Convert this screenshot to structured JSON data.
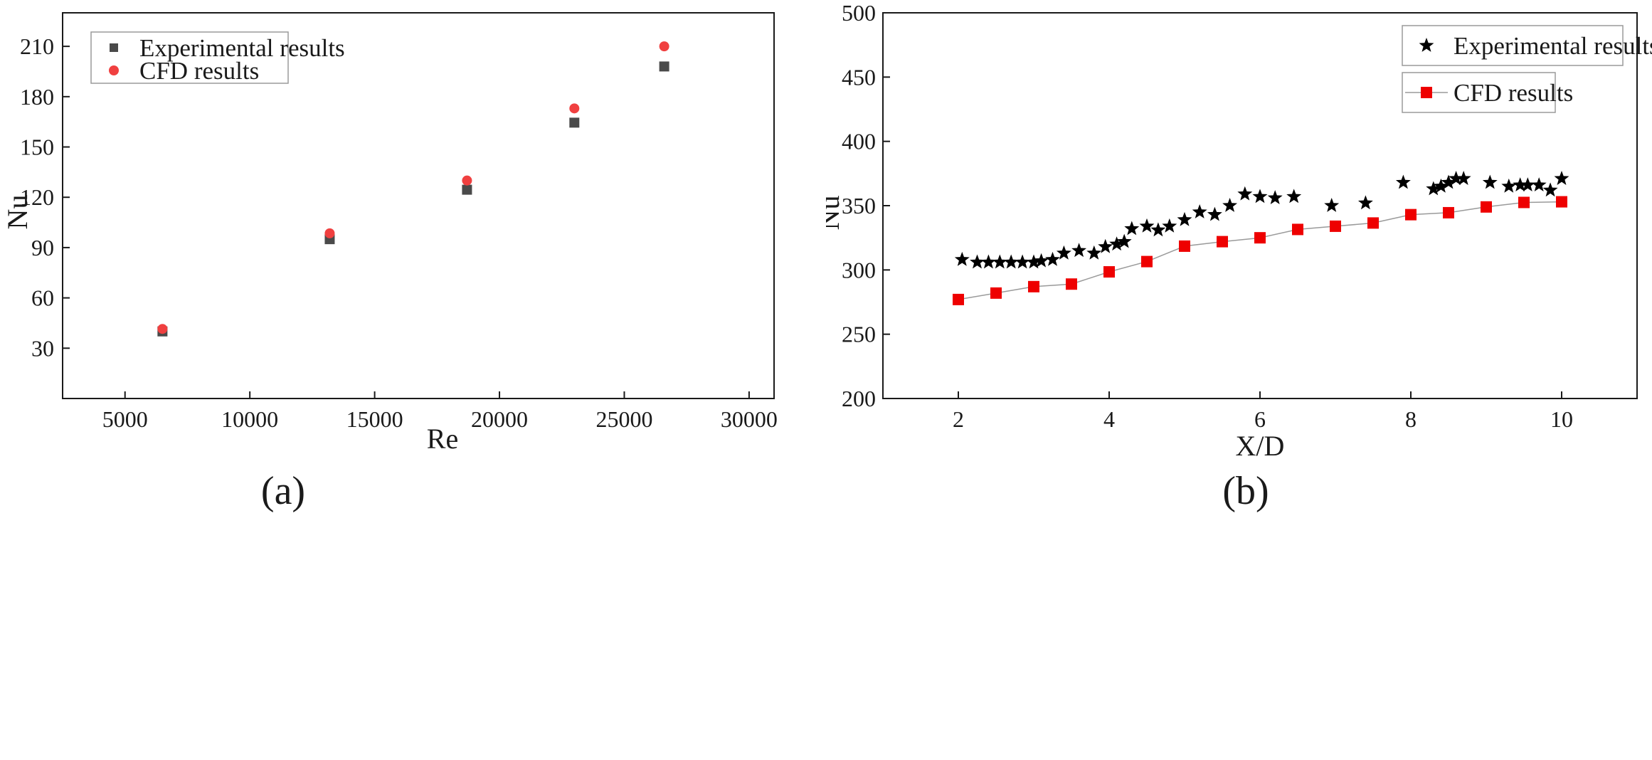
{
  "chart_data": [
    {
      "type": "scatter",
      "panel_label": "(a)",
      "xlabel": "Re",
      "ylabel": "Nu",
      "xlim": [
        2500,
        31000
      ],
      "ylim": [
        0,
        230
      ],
      "xticks": [
        5000,
        10000,
        15000,
        20000,
        25000,
        30000
      ],
      "yticks": [
        30,
        60,
        90,
        120,
        150,
        180,
        210
      ],
      "grid": false,
      "legend_position": "top-left",
      "series": [
        {
          "name": "Experimental results",
          "marker": "square",
          "color": "#4a4a4a",
          "x": [
            6500,
            13200,
            18700,
            23000,
            26600
          ],
          "y": [
            40,
            95,
            124.5,
            164.5,
            198
          ]
        },
        {
          "name": "CFD results",
          "marker": "circle",
          "color": "#f04040",
          "x": [
            6500,
            13200,
            18700,
            23000,
            26600
          ],
          "y": [
            41.5,
            98.5,
            130,
            173,
            210
          ]
        }
      ]
    },
    {
      "type": "line",
      "panel_label": "(b)",
      "xlabel": "X/D",
      "ylabel": "Nu",
      "xlim": [
        1,
        11
      ],
      "ylim": [
        200,
        500
      ],
      "xticks": [
        2,
        4,
        6,
        8,
        10
      ],
      "yticks": [
        200,
        250,
        300,
        350,
        400,
        450,
        500
      ],
      "grid": false,
      "legend_position": "top-right",
      "series": [
        {
          "name": "Experimental results",
          "marker": "star",
          "color": "#000000",
          "line": false,
          "x": [
            2.05,
            2.25,
            2.4,
            2.55,
            2.7,
            2.85,
            3.0,
            3.1,
            3.25,
            3.4,
            3.6,
            3.8,
            3.95,
            4.1,
            4.2,
            4.3,
            4.5,
            4.65,
            4.8,
            5.0,
            5.2,
            5.4,
            5.6,
            5.8,
            6.0,
            6.2,
            6.45,
            6.95,
            7.4,
            7.9,
            8.3,
            8.4,
            8.5,
            8.6,
            8.7,
            9.05,
            9.3,
            9.45,
            9.55,
            9.7,
            9.85,
            10.0
          ],
          "y": [
            308,
            306,
            306,
            306,
            306,
            306,
            306,
            307,
            308,
            313,
            315,
            313,
            318,
            320,
            322,
            332,
            334,
            331,
            334,
            339,
            345,
            343,
            350,
            359,
            357,
            356,
            357,
            350,
            352,
            368,
            363,
            365,
            368,
            371,
            371,
            368,
            365,
            366,
            366,
            366,
            362,
            371
          ]
        },
        {
          "name": "CFD results",
          "marker": "square",
          "color": "#ee0000",
          "line": true,
          "line_color": "#9a9a9a",
          "x": [
            2.0,
            2.5,
            3.0,
            3.5,
            4.0,
            4.5,
            5.0,
            5.5,
            6.0,
            6.5,
            7.0,
            7.5,
            8.0,
            8.5,
            9.0,
            9.5,
            10.0
          ],
          "y": [
            277,
            282,
            287,
            289,
            298.5,
            306.5,
            318.5,
            322,
            325,
            331.5,
            334,
            336.5,
            343,
            344.5,
            349,
            352.5,
            353
          ]
        }
      ]
    }
  ]
}
